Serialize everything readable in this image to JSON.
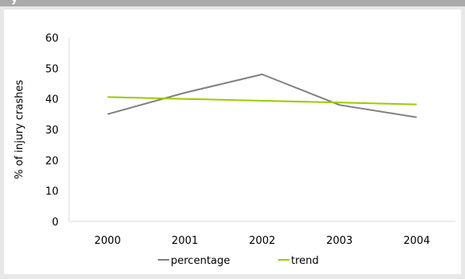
{
  "header": {
    "title_fragment": "y"
  },
  "chart_data": {
    "type": "line",
    "title": "",
    "xlabel": "",
    "ylabel": "% of injury crashes",
    "categories": [
      "2000",
      "2001",
      "2002",
      "2003",
      "2004"
    ],
    "ylim": [
      0,
      60
    ],
    "yticks": [
      0,
      10,
      20,
      30,
      40,
      50,
      60
    ],
    "grid": false,
    "legend_position": "bottom",
    "series": [
      {
        "name": "percentage",
        "color": "#808080",
        "values": [
          35,
          42,
          48,
          38,
          34
        ]
      },
      {
        "name": "trend",
        "color": "#99cc00",
        "values": [
          40.6,
          40.0,
          39.4,
          38.8,
          38.2
        ]
      }
    ]
  }
}
